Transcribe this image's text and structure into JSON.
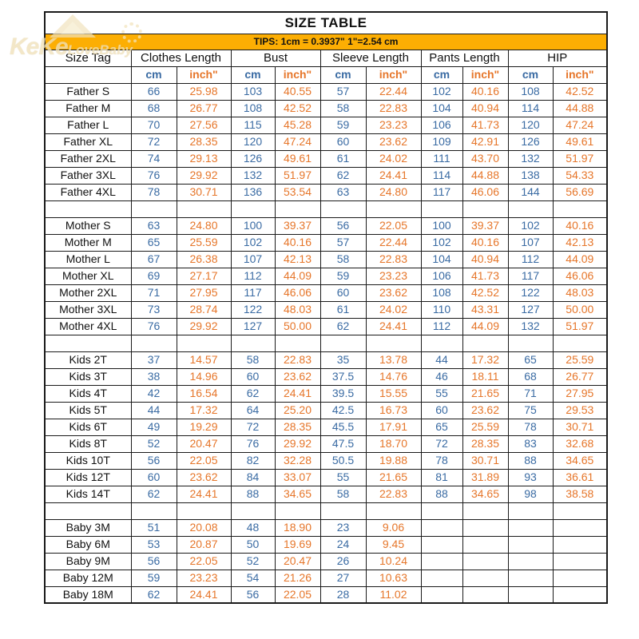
{
  "title": "SIZE TABLE",
  "tips": "TIPS: 1cm = 0.3937\"   1\"=2.54 cm",
  "watermark": {
    "part1": "KeKe",
    "part2": "LoveBaby"
  },
  "colors": {
    "banner": "#FCAE03",
    "cm_text": "#3A6BA3",
    "inch_text": "#E6762A",
    "grid_line": "#1a1a1a"
  },
  "columns": {
    "size_tag": "Size Tag",
    "groups": [
      {
        "label": "Clothes Length"
      },
      {
        "label": "Bust"
      },
      {
        "label": "Sleeve Length"
      },
      {
        "label": "Pants Length"
      },
      {
        "label": "HIP"
      }
    ],
    "unit_cm": "cm",
    "unit_inch": "inch\""
  },
  "sections": [
    {
      "name": "Father",
      "rows": [
        {
          "tag": "Father S",
          "values": [
            "66",
            "25.98",
            "103",
            "40.55",
            "57",
            "22.44",
            "102",
            "40.16",
            "108",
            "42.52"
          ]
        },
        {
          "tag": "Father M",
          "values": [
            "68",
            "26.77",
            "108",
            "42.52",
            "58",
            "22.83",
            "104",
            "40.94",
            "114",
            "44.88"
          ]
        },
        {
          "tag": "Father L",
          "values": [
            "70",
            "27.56",
            "115",
            "45.28",
            "59",
            "23.23",
            "106",
            "41.73",
            "120",
            "47.24"
          ]
        },
        {
          "tag": "Father XL",
          "values": [
            "72",
            "28.35",
            "120",
            "47.24",
            "60",
            "23.62",
            "109",
            "42.91",
            "126",
            "49.61"
          ]
        },
        {
          "tag": "Father 2XL",
          "values": [
            "74",
            "29.13",
            "126",
            "49.61",
            "61",
            "24.02",
            "111",
            "43.70",
            "132",
            "51.97"
          ]
        },
        {
          "tag": "Father 3XL",
          "values": [
            "76",
            "29.92",
            "132",
            "51.97",
            "62",
            "24.41",
            "114",
            "44.88",
            "138",
            "54.33"
          ]
        },
        {
          "tag": "Father 4XL",
          "values": [
            "78",
            "30.71",
            "136",
            "53.54",
            "63",
            "24.80",
            "117",
            "46.06",
            "144",
            "56.69"
          ]
        }
      ]
    },
    {
      "name": "Mother",
      "rows": [
        {
          "tag": "Mother S",
          "values": [
            "63",
            "24.80",
            "100",
            "39.37",
            "56",
            "22.05",
            "100",
            "39.37",
            "102",
            "40.16"
          ]
        },
        {
          "tag": "Mother M",
          "values": [
            "65",
            "25.59",
            "102",
            "40.16",
            "57",
            "22.44",
            "102",
            "40.16",
            "107",
            "42.13"
          ]
        },
        {
          "tag": "Mother L",
          "values": [
            "67",
            "26.38",
            "107",
            "42.13",
            "58",
            "22.83",
            "104",
            "40.94",
            "112",
            "44.09"
          ]
        },
        {
          "tag": "Mother XL",
          "values": [
            "69",
            "27.17",
            "112",
            "44.09",
            "59",
            "23.23",
            "106",
            "41.73",
            "117",
            "46.06"
          ]
        },
        {
          "tag": "Mother 2XL",
          "values": [
            "71",
            "27.95",
            "117",
            "46.06",
            "60",
            "23.62",
            "108",
            "42.52",
            "122",
            "48.03"
          ]
        },
        {
          "tag": "Mother 3XL",
          "values": [
            "73",
            "28.74",
            "122",
            "48.03",
            "61",
            "24.02",
            "110",
            "43.31",
            "127",
            "50.00"
          ]
        },
        {
          "tag": "Mother 4XL",
          "values": [
            "76",
            "29.92",
            "127",
            "50.00",
            "62",
            "24.41",
            "112",
            "44.09",
            "132",
            "51.97"
          ]
        }
      ]
    },
    {
      "name": "Kids",
      "rows": [
        {
          "tag": "Kids 2T",
          "values": [
            "37",
            "14.57",
            "58",
            "22.83",
            "35",
            "13.78",
            "44",
            "17.32",
            "65",
            "25.59"
          ]
        },
        {
          "tag": "Kids 3T",
          "values": [
            "38",
            "14.96",
            "60",
            "23.62",
            "37.5",
            "14.76",
            "46",
            "18.11",
            "68",
            "26.77"
          ]
        },
        {
          "tag": "Kids 4T",
          "values": [
            "42",
            "16.54",
            "62",
            "24.41",
            "39.5",
            "15.55",
            "55",
            "21.65",
            "71",
            "27.95"
          ]
        },
        {
          "tag": "Kids 5T",
          "values": [
            "44",
            "17.32",
            "64",
            "25.20",
            "42.5",
            "16.73",
            "60",
            "23.62",
            "75",
            "29.53"
          ]
        },
        {
          "tag": "Kids 6T",
          "values": [
            "49",
            "19.29",
            "72",
            "28.35",
            "45.5",
            "17.91",
            "65",
            "25.59",
            "78",
            "30.71"
          ]
        },
        {
          "tag": "Kids 8T",
          "values": [
            "52",
            "20.47",
            "76",
            "29.92",
            "47.5",
            "18.70",
            "72",
            "28.35",
            "83",
            "32.68"
          ]
        },
        {
          "tag": "Kids 10T",
          "values": [
            "56",
            "22.05",
            "82",
            "32.28",
            "50.5",
            "19.88",
            "78",
            "30.71",
            "88",
            "34.65"
          ]
        },
        {
          "tag": "Kids 12T",
          "values": [
            "60",
            "23.62",
            "84",
            "33.07",
            "55",
            "21.65",
            "81",
            "31.89",
            "93",
            "36.61"
          ]
        },
        {
          "tag": "Kids 14T",
          "values": [
            "62",
            "24.41",
            "88",
            "34.65",
            "58",
            "22.83",
            "88",
            "34.65",
            "98",
            "38.58"
          ]
        }
      ]
    },
    {
      "name": "Baby",
      "rows": [
        {
          "tag": "Baby 3M",
          "values": [
            "51",
            "20.08",
            "48",
            "18.90",
            "23",
            "9.06",
            "",
            "",
            "",
            ""
          ]
        },
        {
          "tag": "Baby 6M",
          "values": [
            "53",
            "20.87",
            "50",
            "19.69",
            "24",
            "9.45",
            "",
            "",
            "",
            ""
          ]
        },
        {
          "tag": "Baby 9M",
          "values": [
            "56",
            "22.05",
            "52",
            "20.47",
            "26",
            "10.24",
            "",
            "",
            "",
            ""
          ]
        },
        {
          "tag": "Baby 12M",
          "values": [
            "59",
            "23.23",
            "54",
            "21.26",
            "27",
            "10.63",
            "",
            "",
            "",
            ""
          ]
        },
        {
          "tag": "Baby 18M",
          "values": [
            "62",
            "24.41",
            "56",
            "22.05",
            "28",
            "11.02",
            "",
            "",
            "",
            ""
          ]
        }
      ]
    }
  ]
}
